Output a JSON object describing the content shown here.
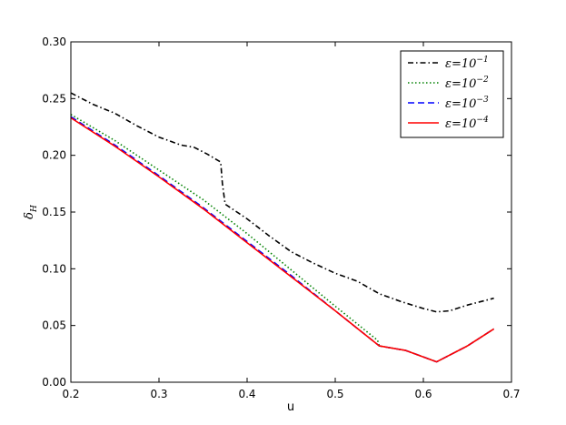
{
  "chart_data": {
    "type": "line",
    "xlabel": "u",
    "ylabel": "δ",
    "ylabel_sub": "H",
    "xlim": [
      0.2,
      0.7
    ],
    "ylim": [
      0.0,
      0.3
    ],
    "xticks": [
      "0.2",
      "0.3",
      "0.4",
      "0.5",
      "0.6",
      "0.7"
    ],
    "yticks": [
      "0.00",
      "0.05",
      "0.10",
      "0.15",
      "0.20",
      "0.25",
      "0.30"
    ],
    "grid": false,
    "legend_position": "top-right",
    "series": [
      {
        "name": "ε=10",
        "exponent": "−1",
        "color": "#000000",
        "style": "dashdot",
        "x": [
          0.2,
          0.225,
          0.25,
          0.275,
          0.3,
          0.325,
          0.34,
          0.355,
          0.37,
          0.372,
          0.375,
          0.4,
          0.425,
          0.45,
          0.475,
          0.5,
          0.525,
          0.55,
          0.575,
          0.6,
          0.615,
          0.63,
          0.65,
          0.68
        ],
        "y": [
          0.255,
          0.245,
          0.237,
          0.226,
          0.216,
          0.209,
          0.207,
          0.201,
          0.194,
          0.175,
          0.157,
          0.144,
          0.129,
          0.115,
          0.105,
          0.096,
          0.089,
          0.078,
          0.071,
          0.065,
          0.062,
          0.063,
          0.068,
          0.074
        ]
      },
      {
        "name": "ε=10",
        "exponent": "−2",
        "color": "#008000",
        "style": "dotted",
        "x": [
          0.2,
          0.25,
          0.3,
          0.35,
          0.4,
          0.45,
          0.5,
          0.548,
          0.55,
          0.58,
          0.615,
          0.65,
          0.68
        ],
        "y": [
          0.236,
          0.213,
          0.187,
          0.161,
          0.131,
          0.099,
          0.067,
          0.037,
          0.032,
          0.028,
          0.018,
          0.032,
          0.047
        ]
      },
      {
        "name": "ε=10",
        "exponent": "−3",
        "color": "#0000ff",
        "style": "dashed",
        "x": [
          0.2,
          0.25,
          0.3,
          0.35,
          0.4,
          0.45,
          0.5,
          0.55,
          0.58,
          0.615,
          0.65,
          0.68
        ],
        "y": [
          0.234,
          0.209,
          0.182,
          0.154,
          0.124,
          0.094,
          0.063,
          0.032,
          0.028,
          0.018,
          0.032,
          0.047
        ]
      },
      {
        "name": "ε=10",
        "exponent": "−4",
        "color": "#ff0000",
        "style": "solid",
        "x": [
          0.2,
          0.25,
          0.3,
          0.35,
          0.4,
          0.45,
          0.5,
          0.55,
          0.58,
          0.615,
          0.65,
          0.68
        ],
        "y": [
          0.233,
          0.208,
          0.181,
          0.153,
          0.123,
          0.093,
          0.063,
          0.032,
          0.028,
          0.018,
          0.032,
          0.047
        ]
      }
    ]
  }
}
